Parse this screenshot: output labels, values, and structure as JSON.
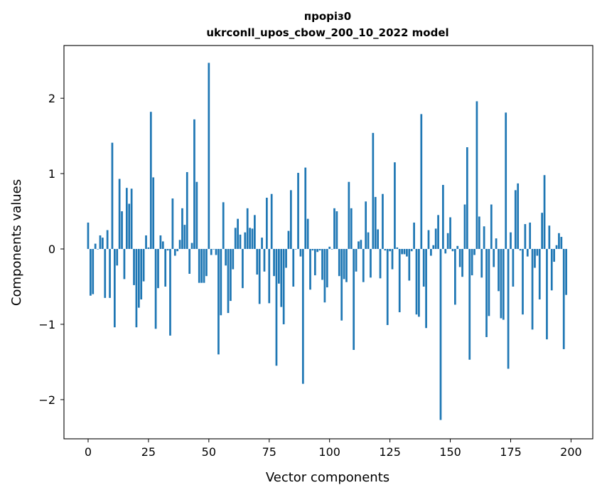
{
  "chart_data": {
    "type": "bar",
    "title_line1": "проріз0",
    "title_line2": "ukrconll_upos_cbow_200_10_2022 model",
    "xlabel": "Vector components",
    "ylabel": "Components values",
    "xlim": [
      -10,
      209
    ],
    "ylim": [
      -2.52,
      2.7
    ],
    "xticks": [
      0,
      25,
      50,
      75,
      100,
      125,
      150,
      175,
      200
    ],
    "yticks": [
      -2,
      -1,
      0,
      1,
      2
    ],
    "ytick_labels": [
      "−2",
      "−1",
      "0",
      "1",
      "2"
    ],
    "bar_color": "#1f77b4",
    "grid": false,
    "values": [
      0.35,
      -0.62,
      -0.6,
      0.07,
      0.0,
      0.18,
      0.15,
      -0.65,
      0.25,
      -0.65,
      1.41,
      -1.04,
      -0.22,
      0.93,
      0.5,
      -0.4,
      0.81,
      0.6,
      0.8,
      -0.48,
      -1.04,
      -0.78,
      -0.67,
      -0.43,
      0.18,
      0.02,
      1.82,
      0.95,
      -1.06,
      -0.52,
      0.18,
      0.1,
      -0.5,
      -0.02,
      -1.15,
      0.67,
      -0.09,
      -0.03,
      0.12,
      0.54,
      0.32,
      1.02,
      -0.33,
      0.08,
      1.72,
      0.89,
      -0.45,
      -0.45,
      -0.45,
      -0.36,
      2.47,
      -0.08,
      0.0,
      -0.08,
      -1.4,
      -0.88,
      0.62,
      -0.22,
      -0.85,
      -0.69,
      -0.27,
      0.28,
      0.4,
      0.19,
      -0.52,
      0.22,
      0.54,
      0.28,
      0.27,
      0.45,
      -0.34,
      -0.73,
      0.15,
      -0.3,
      0.68,
      -0.72,
      0.73,
      -0.36,
      -1.55,
      -0.46,
      -0.77,
      -1.0,
      -0.25,
      0.24,
      0.78,
      -0.5,
      0.0,
      1.01,
      -0.1,
      -1.79,
      1.08,
      0.4,
      -0.54,
      -0.02,
      -0.35,
      -0.04,
      -0.02,
      -0.41,
      -0.71,
      -0.51,
      0.03,
      0.0,
      0.54,
      0.5,
      -0.36,
      -0.95,
      -0.4,
      -0.44,
      0.89,
      0.54,
      -1.34,
      -0.3,
      0.1,
      0.12,
      -0.44,
      0.63,
      0.22,
      -0.38,
      1.54,
      0.69,
      0.26,
      -0.39,
      0.73,
      -0.02,
      -1.01,
      -0.03,
      -0.27,
      1.15,
      0.02,
      -0.84,
      -0.07,
      -0.07,
      -0.1,
      -0.42,
      -0.03,
      0.35,
      -0.87,
      -0.9,
      1.79,
      -0.5,
      -1.05,
      0.25,
      -0.09,
      0.05,
      0.27,
      0.45,
      -2.27,
      0.85,
      -0.06,
      0.21,
      0.42,
      -0.03,
      -0.74,
      0.04,
      -0.24,
      -0.37,
      0.59,
      1.35,
      -1.47,
      -0.35,
      -0.08,
      1.96,
      0.43,
      -0.38,
      0.3,
      -1.17,
      -0.89,
      0.59,
      -0.24,
      0.14,
      -0.56,
      -0.92,
      -0.94,
      1.81,
      -1.59,
      0.22,
      -0.5,
      0.78,
      0.87,
      -0.02,
      -0.87,
      0.33,
      -0.1,
      0.35,
      -1.07,
      -0.25,
      -0.09,
      -0.67,
      0.48,
      0.98,
      -1.2,
      0.31,
      -0.55,
      -0.17,
      0.05,
      0.21,
      0.16,
      -1.33,
      -0.61
    ]
  }
}
